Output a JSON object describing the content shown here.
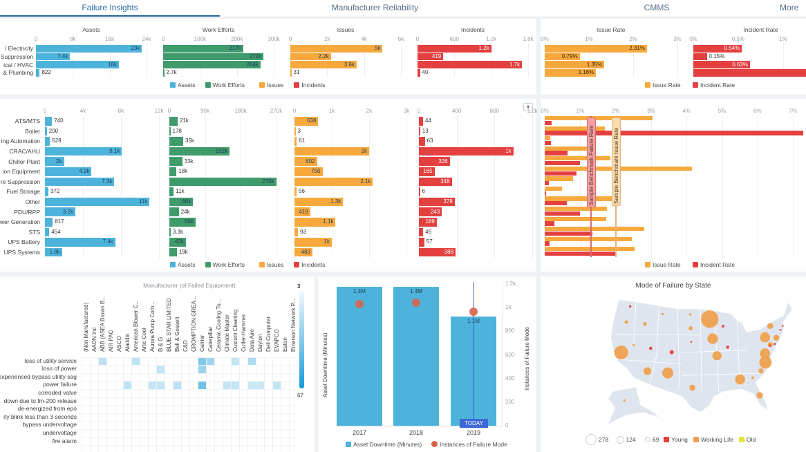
{
  "tabs": [
    {
      "label": "Failure Insights"
    },
    {
      "label": "Manufacturer Reliability"
    },
    {
      "label": "CMMS"
    },
    {
      "label": "More"
    }
  ],
  "colors": {
    "assets": "#4db3db",
    "work_efforts": "#3f9a6c",
    "issues": "#f7a93e",
    "incidents": "#e3403f",
    "accent": "#2b6ca3",
    "old": "#e6e23a",
    "today": "#3d68d8",
    "instances": "#d9634a"
  },
  "chart_data": [
    {
      "type": "bar",
      "orientation": "horizontal",
      "categories": [
        "/ Electricity",
        "Suppression",
        "ical / HVAC",
        "& Plumbing"
      ],
      "series": [
        {
          "name": "Assets",
          "title": "Assets",
          "values": [
            23000,
            7400,
            18000,
            822
          ],
          "labels": [
            "23k",
            "7.4k",
            "18k",
            "822"
          ],
          "axis": {
            "max": 24000,
            "ticks": [
              0,
              8000,
              16000,
              24000
            ],
            "tick_labels": [
              "0",
              "8k",
              "16k",
              "24k"
            ]
          }
        },
        {
          "name": "Work Efforts",
          "title": "Work Efforts",
          "values": [
            217000,
            272000,
            264000,
            2700
          ],
          "labels": [
            "217k",
            "272k",
            "264k",
            "2.7k"
          ],
          "axis": {
            "max": 300000,
            "ticks": [
              0,
              100000,
              200000,
              300000
            ],
            "tick_labels": [
              "0",
              "100k",
              "200k",
              "300k"
            ]
          }
        },
        {
          "name": "Issues",
          "title": "Issues",
          "values": [
            5000,
            2200,
            3600,
            31
          ],
          "labels": [
            "5k",
            "2.2k",
            "3.6k",
            "31"
          ],
          "axis": {
            "max": 6000,
            "ticks": [
              0,
              2000,
              4000,
              6000
            ],
            "tick_labels": [
              "0",
              "2k",
              "4k",
              "6k"
            ]
          }
        },
        {
          "name": "Incidents",
          "title": "Incidents",
          "values": [
            1200,
            419,
            1700,
            40
          ],
          "labels": [
            "1.2k",
            "419",
            "1.7k",
            "40"
          ],
          "axis": {
            "max": 1800,
            "ticks": [
              0,
              600,
              1200,
              1800
            ],
            "tick_labels": [
              "0",
              "600",
              "1.2k",
              "1.8k"
            ]
          }
        }
      ],
      "legend": [
        "Assets",
        "Work Efforts",
        "Issues",
        "Incidents"
      ],
      "legend_position": "bottom"
    },
    {
      "type": "bar",
      "orientation": "horizontal",
      "series": [
        {
          "name": "Issue Rate",
          "title": "Issue Rate",
          "values": [
            2.31,
            0.79,
            1.35,
            1.16
          ],
          "labels": [
            "2.31%",
            "0.79%",
            "1.35%",
            "1.16%"
          ],
          "axis": {
            "max": 3,
            "ticks": [
              0,
              1,
              2,
              3
            ],
            "tick_labels": [
              "0%",
              "1%",
              "2%",
              "3%"
            ]
          }
        },
        {
          "name": "Incident Rate",
          "title": "Incident Rate",
          "values": [
            0.54,
            0.15,
            0.63,
            1.3
          ],
          "labels": [
            "0.54%",
            "0.15%",
            "0.63%",
            ""
          ],
          "axis": {
            "max": 1.5,
            "ticks": [
              0,
              0.5,
              1
            ],
            "tick_labels": [
              "0%",
              "0.5%",
              "1%"
            ]
          }
        }
      ],
      "legend": [
        "Issue Rate",
        "Incident Rate"
      ],
      "legend_position": "bottom"
    },
    {
      "type": "bar",
      "orientation": "horizontal",
      "categories": [
        "ATS/MTS",
        "Boiler",
        "ing Automation",
        "CRAC/AHU",
        "Chiller Plant",
        "ion Equipment",
        "re Suppression",
        "Fuel Storage",
        "Other",
        "PDU/RPP",
        "wer Generation",
        "STS",
        "UPS Battery",
        "UPS Systems"
      ],
      "series": [
        {
          "name": "Assets",
          "values": [
            740,
            200,
            528,
            8100,
            2000,
            4900,
            7300,
            372,
            11000,
            3200,
            817,
            454,
            7400,
            1800
          ],
          "labels": [
            "740",
            "200",
            "528",
            "8.1k",
            "2k",
            "4.9k",
            "7.3k",
            "372",
            "11k",
            "3.2k",
            "817",
            "454",
            "7.4k",
            "1.8k"
          ],
          "axis": {
            "max": 12000,
            "ticks": [
              0,
              4000,
              8000,
              12000
            ],
            "tick_labels": [
              "0",
              "4k",
              "8k",
              "12k"
            ]
          }
        },
        {
          "name": "Work Efforts",
          "values": [
            21000,
            178,
            35000,
            152000,
            33000,
            18000,
            270000,
            11000,
            60000,
            24000,
            66000,
            3300,
            42000,
            19000
          ],
          "labels": [
            "21k",
            "178",
            "35k",
            "152k",
            "33k",
            "18k",
            "270k",
            "11k",
            "60k",
            "24k",
            "66k",
            "3.3k",
            "42k",
            "19k"
          ],
          "axis": {
            "max": 290000,
            "ticks": [
              0,
              90000,
              180000,
              270000
            ],
            "tick_labels": [
              "0",
              "90k",
              "180k",
              "270k"
            ]
          }
        },
        {
          "name": "Issues",
          "values": [
            638,
            3,
            61,
            2000,
            602,
            750,
            2100,
            56,
            1300,
            419,
            1100,
            93,
            1000,
            483
          ],
          "labels": [
            "638",
            "3",
            "61",
            "2k",
            "602",
            "750",
            "2.1k",
            "56",
            "1.3k",
            "419",
            "1.1k",
            "93",
            "1k",
            "483"
          ],
          "axis": {
            "max": 3000,
            "ticks": [
              0,
              1000,
              2000,
              3000
            ],
            "tick_labels": [
              "0",
              "1k",
              "2k",
              "3k"
            ]
          }
        },
        {
          "name": "Incidents",
          "values": [
            44,
            13,
            63,
            1000,
            326,
            165,
            348,
            6,
            378,
            243,
            189,
            45,
            57,
            388
          ],
          "labels": [
            "44",
            "13",
            "63",
            "1k",
            "326",
            "165",
            "348",
            "6",
            "378",
            "243",
            "189",
            "45",
            "57",
            "388"
          ],
          "axis": {
            "max": 1200,
            "ticks": [
              0,
              400,
              800,
              1200
            ],
            "tick_labels": [
              "0",
              "400",
              "800",
              "1.2k"
            ]
          }
        }
      ],
      "legend": [
        "Assets",
        "Work Efforts",
        "Issues",
        "Incidents"
      ],
      "legend_position": "bottom"
    },
    {
      "type": "bar",
      "orientation": "horizontal",
      "series": [
        {
          "name": "Issue Rate",
          "values": [
            3.05,
            1.7,
            0.15,
            1.3,
            1.85,
            4.15,
            0.8,
            0.48,
            1.9,
            1.75,
            1.73,
            2.8,
            2.45,
            2.53
          ]
        },
        {
          "name": "Incident Rate",
          "values": [
            0.2,
            7.3,
            0.17,
            0.65,
            1.0,
            0.9,
            0.12,
            0.03,
            0.62,
            1.0,
            0.28,
            1.35,
            0.13,
            2.03
          ]
        }
      ],
      "axis": {
        "max": 7.5,
        "ticks": [
          0,
          1,
          2,
          3,
          4,
          5,
          6,
          7
        ],
        "tick_labels": [
          "0%",
          "1%",
          "2%",
          "3%",
          "4%",
          "5%",
          "6%",
          "7%"
        ]
      },
      "benchmarks": [
        {
          "label": "Sample Benchmark Failure Rate",
          "value": 1.3
        },
        {
          "label": "Sample Benchmark Issue Rate",
          "value": 2.0
        }
      ],
      "legend": [
        "Issue Rate",
        "Incident Rate"
      ],
      "legend_position": "bottom"
    },
    {
      "type": "heatmap",
      "title": "Manufacturer (of Failed Equipment)",
      "columns": [
        "(Non Manufactured)",
        "AAON Inc",
        "ABB (ASEA Brown B...",
        "AIR PAC",
        "ASCO",
        "Aladdin",
        "American Blower C...",
        "Artic Cool",
        "Aurora Pump Com...",
        "B & G",
        "BLUE STAR LIMITED",
        "Bell & Gossett",
        "C&D",
        "CROMPTION GREA...",
        "Carrier",
        "Caterpillar",
        "Ceramic Cooling To...",
        "Climate Master",
        "Custom Cleaning",
        "Cutler-Hammer",
        "Data Aire",
        "Dayton",
        "Dell Computer",
        "EVAPCO",
        "Eaton",
        "Emerson Network P..."
      ],
      "rows": [
        "loss of utility service",
        "loss of power",
        "experienced bypass utility sag",
        "power failure",
        "corroded valve",
        "down due to fm-200 release",
        "de-energized from epo",
        "ity blink less than 3 seconds",
        "bypass undervoltage",
        "undervoltage",
        "fire alarm"
      ],
      "cells": [
        [
          0,
          2,
          10
        ],
        [
          0,
          6,
          10
        ],
        [
          0,
          14,
          18
        ],
        [
          0,
          15,
          14
        ],
        [
          0,
          18,
          9
        ],
        [
          0,
          20,
          12
        ],
        [
          1,
          9,
          9
        ],
        [
          1,
          14,
          15
        ],
        [
          3,
          5,
          10
        ],
        [
          3,
          8,
          9
        ],
        [
          3,
          9,
          9
        ],
        [
          3,
          11,
          10
        ],
        [
          3,
          14,
          20
        ],
        [
          3,
          17,
          9
        ],
        [
          3,
          18,
          9
        ],
        [
          3,
          20,
          8
        ],
        [
          3,
          21,
          8
        ],
        [
          3,
          23,
          9
        ]
      ],
      "color_scale": {
        "top_label": "3",
        "bottom_label": "67"
      }
    },
    {
      "type": "bar",
      "categories": [
        "2017",
        "2018",
        "2019"
      ],
      "series": [
        {
          "name": "Asset Downtime (Minutes)",
          "type": "bar",
          "values": [
            1400000,
            1400000,
            1100000
          ],
          "labels": [
            "1.4M",
            "1.4M",
            "1.1M"
          ]
        },
        {
          "name": "Instances of Failure Mode",
          "type": "scatter",
          "values": [
            1030,
            1040,
            965
          ]
        }
      ],
      "ylabel_left": "Asset Downtime (Minutes)",
      "ylabel_right": "Instances of Failure Mode",
      "right_axis": {
        "max": 1200,
        "ticks": [
          0,
          200,
          400,
          600,
          800,
          1000,
          1200
        ],
        "tick_labels": [
          "0",
          "200",
          "400",
          "600",
          "800",
          "1k",
          "1.2k"
        ]
      },
      "annotation": {
        "label": "TODAY",
        "category": "2019"
      }
    },
    {
      "type": "map",
      "title": "Mode of Failure by State",
      "size_legend": [
        "278",
        "124",
        "69"
      ],
      "color_legend": [
        {
          "label": "Young",
          "color": "#e3403f"
        },
        {
          "label": "Working Life",
          "color": "#f0a04b"
        },
        {
          "label": "Old",
          "color": "#e6e23a"
        }
      ]
    }
  ]
}
